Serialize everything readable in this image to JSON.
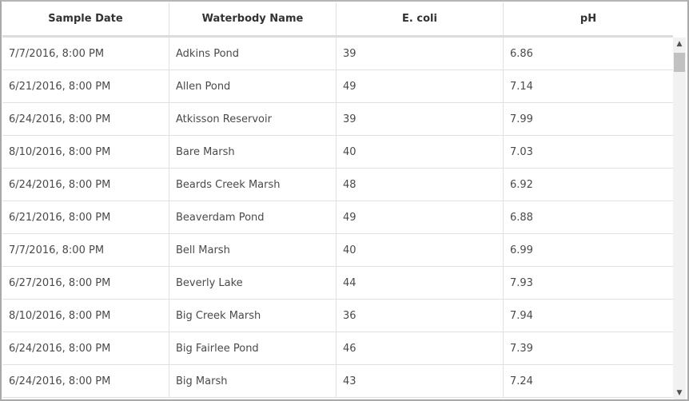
{
  "table": {
    "columns": [
      "Sample Date",
      "Waterbody Name",
      "E. coli",
      "pH"
    ],
    "rows": [
      [
        "7/7/2016, 8:00 PM",
        "Adkins Pond",
        "39",
        "6.86"
      ],
      [
        "6/21/2016, 8:00 PM",
        "Allen Pond",
        "49",
        "7.14"
      ],
      [
        "6/24/2016, 8:00 PM",
        "Atkisson Reservoir",
        "39",
        "7.99"
      ],
      [
        "8/10/2016, 8:00 PM",
        "Bare Marsh",
        "40",
        "7.03"
      ],
      [
        "6/24/2016, 8:00 PM",
        "Beards Creek Marsh",
        "48",
        "6.92"
      ],
      [
        "6/21/2016, 8:00 PM",
        "Beaverdam Pond",
        "49",
        "6.88"
      ],
      [
        "7/7/2016, 8:00 PM",
        "Bell Marsh",
        "40",
        "6.99"
      ],
      [
        "6/27/2016, 8:00 PM",
        "Beverly Lake",
        "44",
        "7.93"
      ],
      [
        "8/10/2016, 8:00 PM",
        "Big Creek Marsh",
        "36",
        "7.94"
      ],
      [
        "6/24/2016, 8:00 PM",
        "Big Fairlee Pond",
        "46",
        "7.39"
      ],
      [
        "6/24/2016, 8:00 PM",
        "Big Marsh",
        "43",
        "7.24"
      ]
    ]
  },
  "scrollbar": {
    "up_icon": "chevron-up-icon",
    "down_icon": "chevron-down-icon",
    "position": 0
  }
}
